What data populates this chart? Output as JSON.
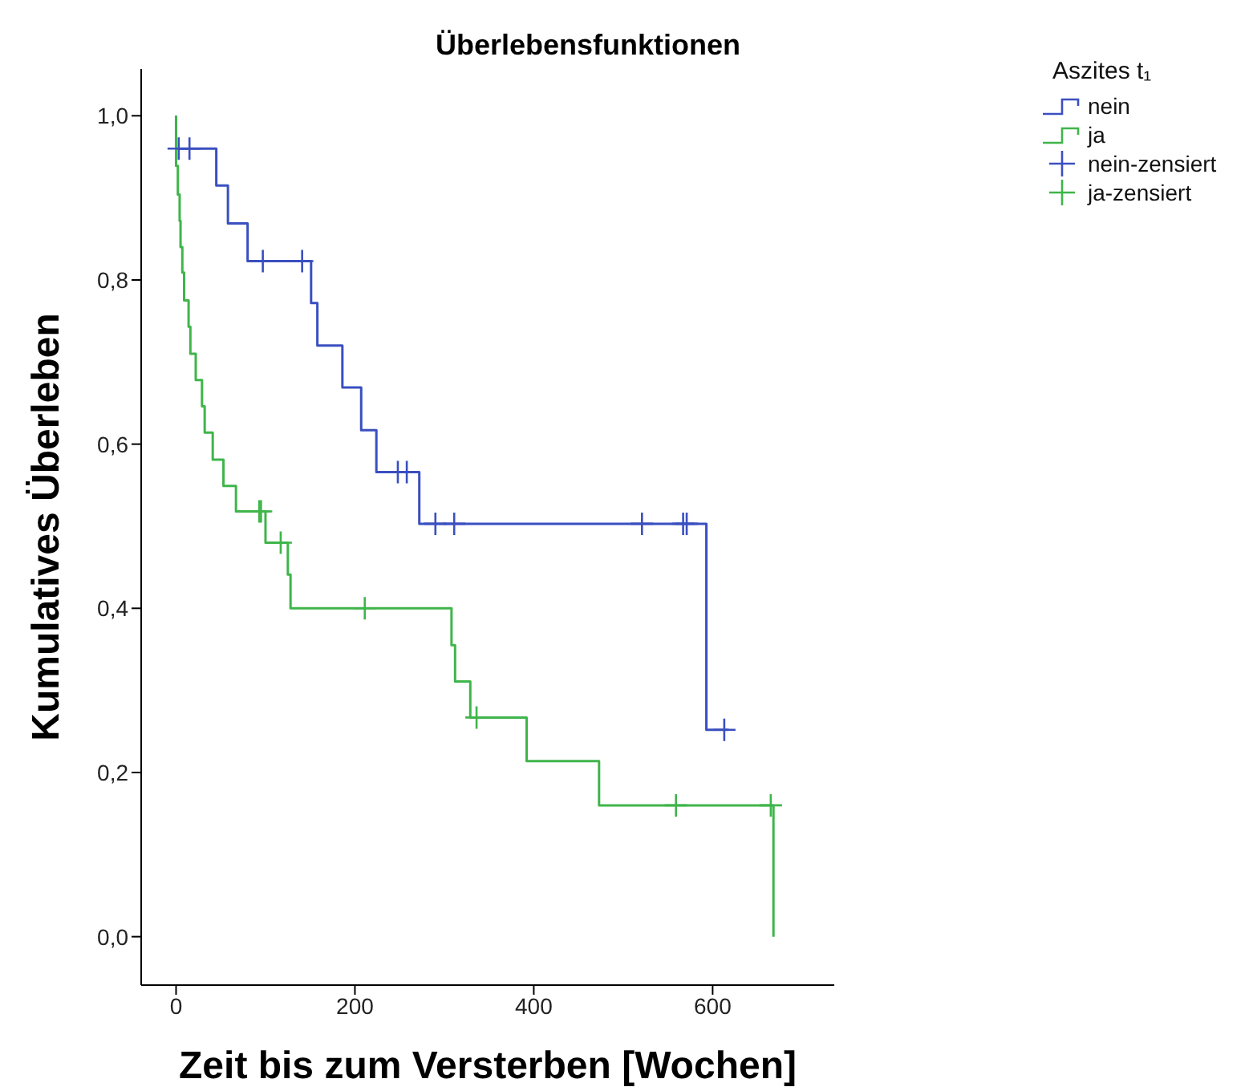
{
  "chart_data": {
    "type": "step",
    "title": "Überlebensfunktionen",
    "xlabel": "Zeit bis zum Versterben [Wochen]",
    "ylabel": "Kumulatives Überleben",
    "legend_title": "Aszites t₁",
    "legend": "right",
    "xlim": [
      -39,
      736
    ],
    "ylim": [
      -0.059,
      1.057
    ],
    "xticks": [
      0,
      200,
      400,
      600
    ],
    "yticks": [
      {
        "value": 0,
        "label": "0,0"
      },
      {
        "value": 0.2,
        "label": "0,2"
      },
      {
        "value": 0.4,
        "label": "0,4"
      },
      {
        "value": 0.6,
        "label": "0,6"
      },
      {
        "value": 0.8,
        "label": "0,8"
      },
      {
        "value": 1,
        "label": "1,0"
      }
    ],
    "series": [
      {
        "name": "nein",
        "color": "#3a4fc0",
        "x": [
          0,
          0,
          45,
          58,
          80,
          151,
          158,
          186,
          207,
          224,
          272,
          593,
          618
        ],
        "values": [
          1.0,
          0.96,
          0.915,
          0.869,
          0.823,
          0.772,
          0.72,
          0.669,
          0.617,
          0.566,
          0.503,
          0.252,
          0.252
        ]
      },
      {
        "name": "ja",
        "color": "#3fb54a",
        "x": [
          0,
          0,
          2,
          4,
          5,
          7,
          9,
          14,
          16,
          22,
          29,
          32,
          41,
          53,
          67,
          100,
          125,
          128,
          308,
          312,
          329,
          392,
          473,
          668
        ],
        "values": [
          1.0,
          0.939,
          0.904,
          0.872,
          0.84,
          0.809,
          0.775,
          0.743,
          0.71,
          0.678,
          0.646,
          0.614,
          0.581,
          0.549,
          0.518,
          0.48,
          0.441,
          0.4,
          0.355,
          0.311,
          0.267,
          0.214,
          0.16,
          0
        ]
      },
      {
        "name": "nein-zensiert",
        "type": "scatter",
        "marker": "cross",
        "color": "#3a4fc0",
        "x": [
          3,
          15,
          97,
          141,
          248,
          258,
          290,
          311,
          521,
          567,
          571,
          613
        ],
        "values": [
          0.96,
          0.96,
          0.823,
          0.823,
          0.566,
          0.566,
          0.503,
          0.503,
          0.503,
          0.503,
          0.503,
          0.252
        ]
      },
      {
        "name": "ja-zensiert",
        "type": "scatter",
        "marker": "cross",
        "color": "#3fb54a",
        "x": [
          93,
          95,
          117,
          211,
          336,
          559,
          665
        ],
        "values": [
          0.518,
          0.518,
          0.48,
          0.4,
          0.267,
          0.16,
          0.16
        ]
      }
    ]
  }
}
